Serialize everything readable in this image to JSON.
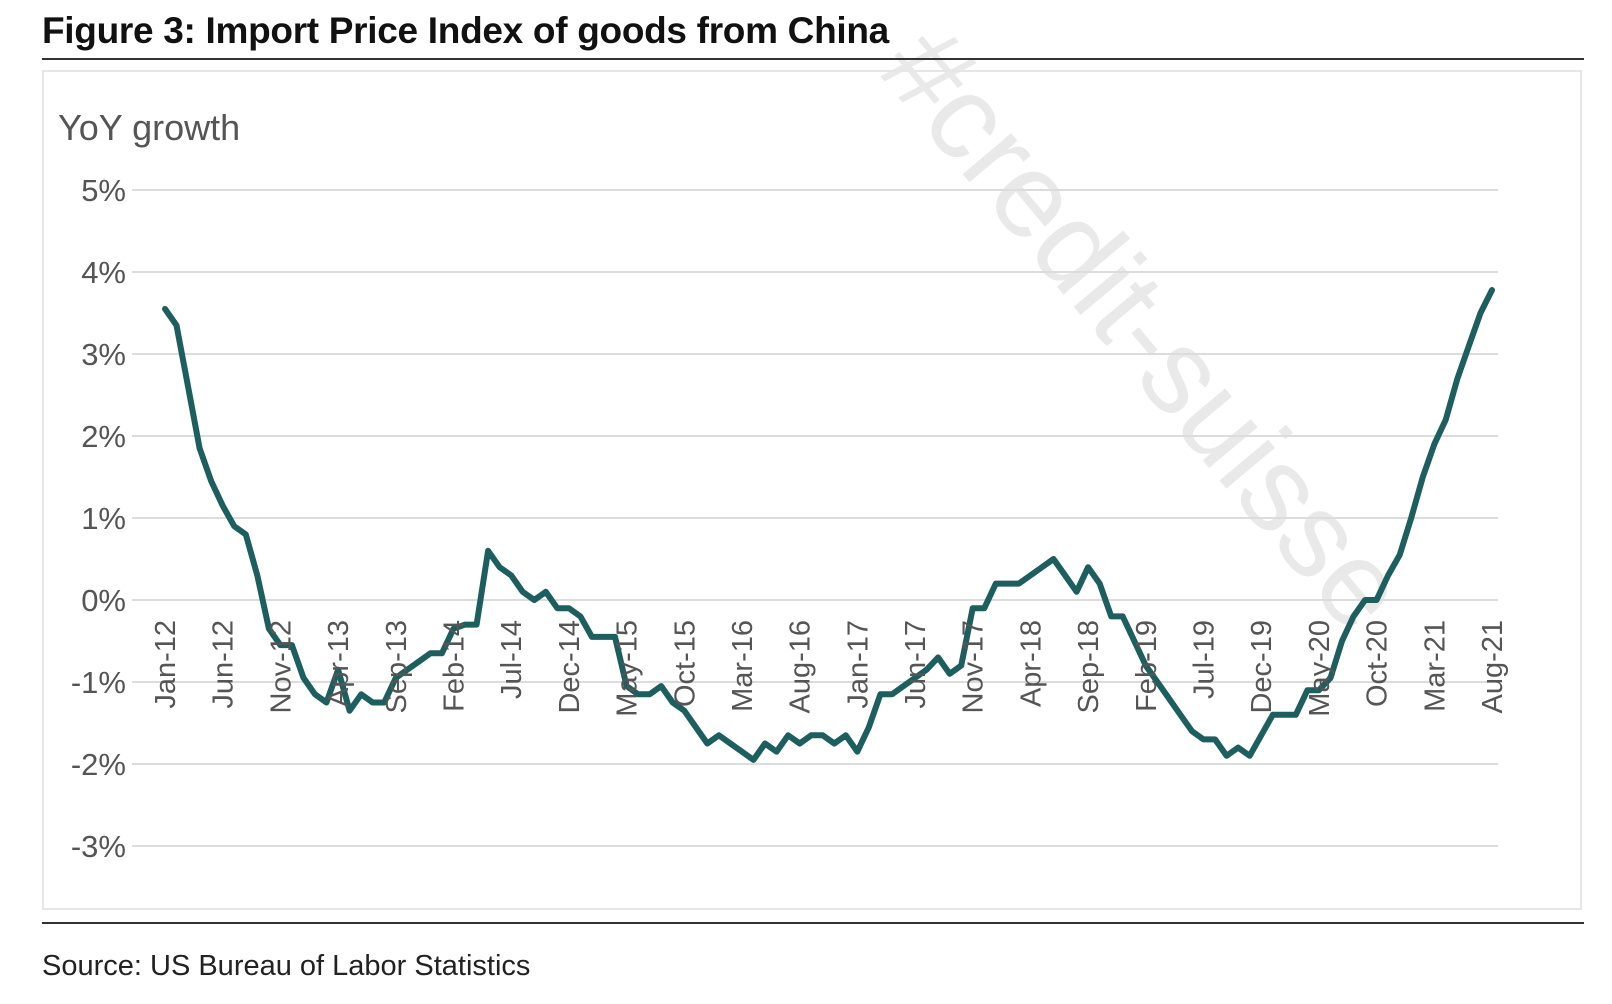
{
  "figure": {
    "title": "Figure 3: Import Price Index of goods from China",
    "source": "Source: US Bureau of Labor Statistics",
    "watermark": "#credit-suisse"
  },
  "colors": {
    "line": "#1d5e5f",
    "grid": "#dcdcdc",
    "tick": "#555555"
  },
  "chart_data": {
    "type": "line",
    "title": "Figure 3: Import Price Index of goods from China",
    "ylabel": "YoY growth",
    "xlabel": "",
    "ylim": [
      -3,
      5
    ],
    "yticks": [
      5,
      4,
      3,
      2,
      1,
      0,
      -1,
      -2,
      -3
    ],
    "ytick_labels": [
      "5%",
      "4%",
      "3%",
      "2%",
      "1%",
      "0%",
      "-1%",
      "-2%",
      "-3%"
    ],
    "xtick_labels": [
      "Jan-12",
      "Jun-12",
      "Nov-12",
      "Apr-13",
      "Sep-13",
      "Feb-14",
      "Jul-14",
      "Dec-14",
      "May-15",
      "Oct-15",
      "Mar-16",
      "Aug-16",
      "Jan-17",
      "Jun-17",
      "Nov-17",
      "Apr-18",
      "Sep-18",
      "Feb-19",
      "Jul-19",
      "Dec-19",
      "May-20",
      "Oct-20",
      "Mar-21",
      "Aug-21"
    ],
    "xtick_every": 5,
    "grid": true,
    "legend": "none",
    "series": [
      {
        "start": "Jan-12",
        "end": "Aug-21",
        "frequency": "monthly",
        "values": [
          3.55,
          3.35,
          2.6,
          1.85,
          1.45,
          1.15,
          0.9,
          0.8,
          0.3,
          -0.35,
          -0.55,
          -0.55,
          -0.95,
          -1.15,
          -1.25,
          -0.85,
          -1.35,
          -1.15,
          -1.25,
          -1.25,
          -0.95,
          -0.85,
          -0.75,
          -0.65,
          -0.65,
          -0.35,
          -0.3,
          -0.3,
          0.6,
          0.4,
          0.3,
          0.1,
          0.0,
          0.1,
          -0.1,
          -0.1,
          -0.2,
          -0.45,
          -0.45,
          -0.45,
          -1.05,
          -1.15,
          -1.15,
          -1.05,
          -1.25,
          -1.35,
          -1.55,
          -1.75,
          -1.65,
          -1.75,
          -1.85,
          -1.95,
          -1.75,
          -1.85,
          -1.65,
          -1.75,
          -1.65,
          -1.65,
          -1.75,
          -1.65,
          -1.85,
          -1.55,
          -1.15,
          -1.15,
          -1.05,
          -0.95,
          -0.85,
          -0.7,
          -0.9,
          -0.8,
          -0.1,
          -0.1,
          0.2,
          0.2,
          0.2,
          0.3,
          0.4,
          0.5,
          0.3,
          0.1,
          0.4,
          0.2,
          -0.2,
          -0.2,
          -0.5,
          -0.8,
          -1.0,
          -1.2,
          -1.4,
          -1.6,
          -1.7,
          -1.7,
          -1.9,
          -1.8,
          -1.9,
          -1.65,
          -1.4,
          -1.4,
          -1.4,
          -1.1,
          -1.1,
          -0.95,
          -0.5,
          -0.2,
          0.0,
          0.0,
          0.3,
          0.55,
          1.0,
          1.5,
          1.9,
          2.2,
          2.7,
          3.1,
          3.5,
          3.78
        ]
      }
    ]
  }
}
